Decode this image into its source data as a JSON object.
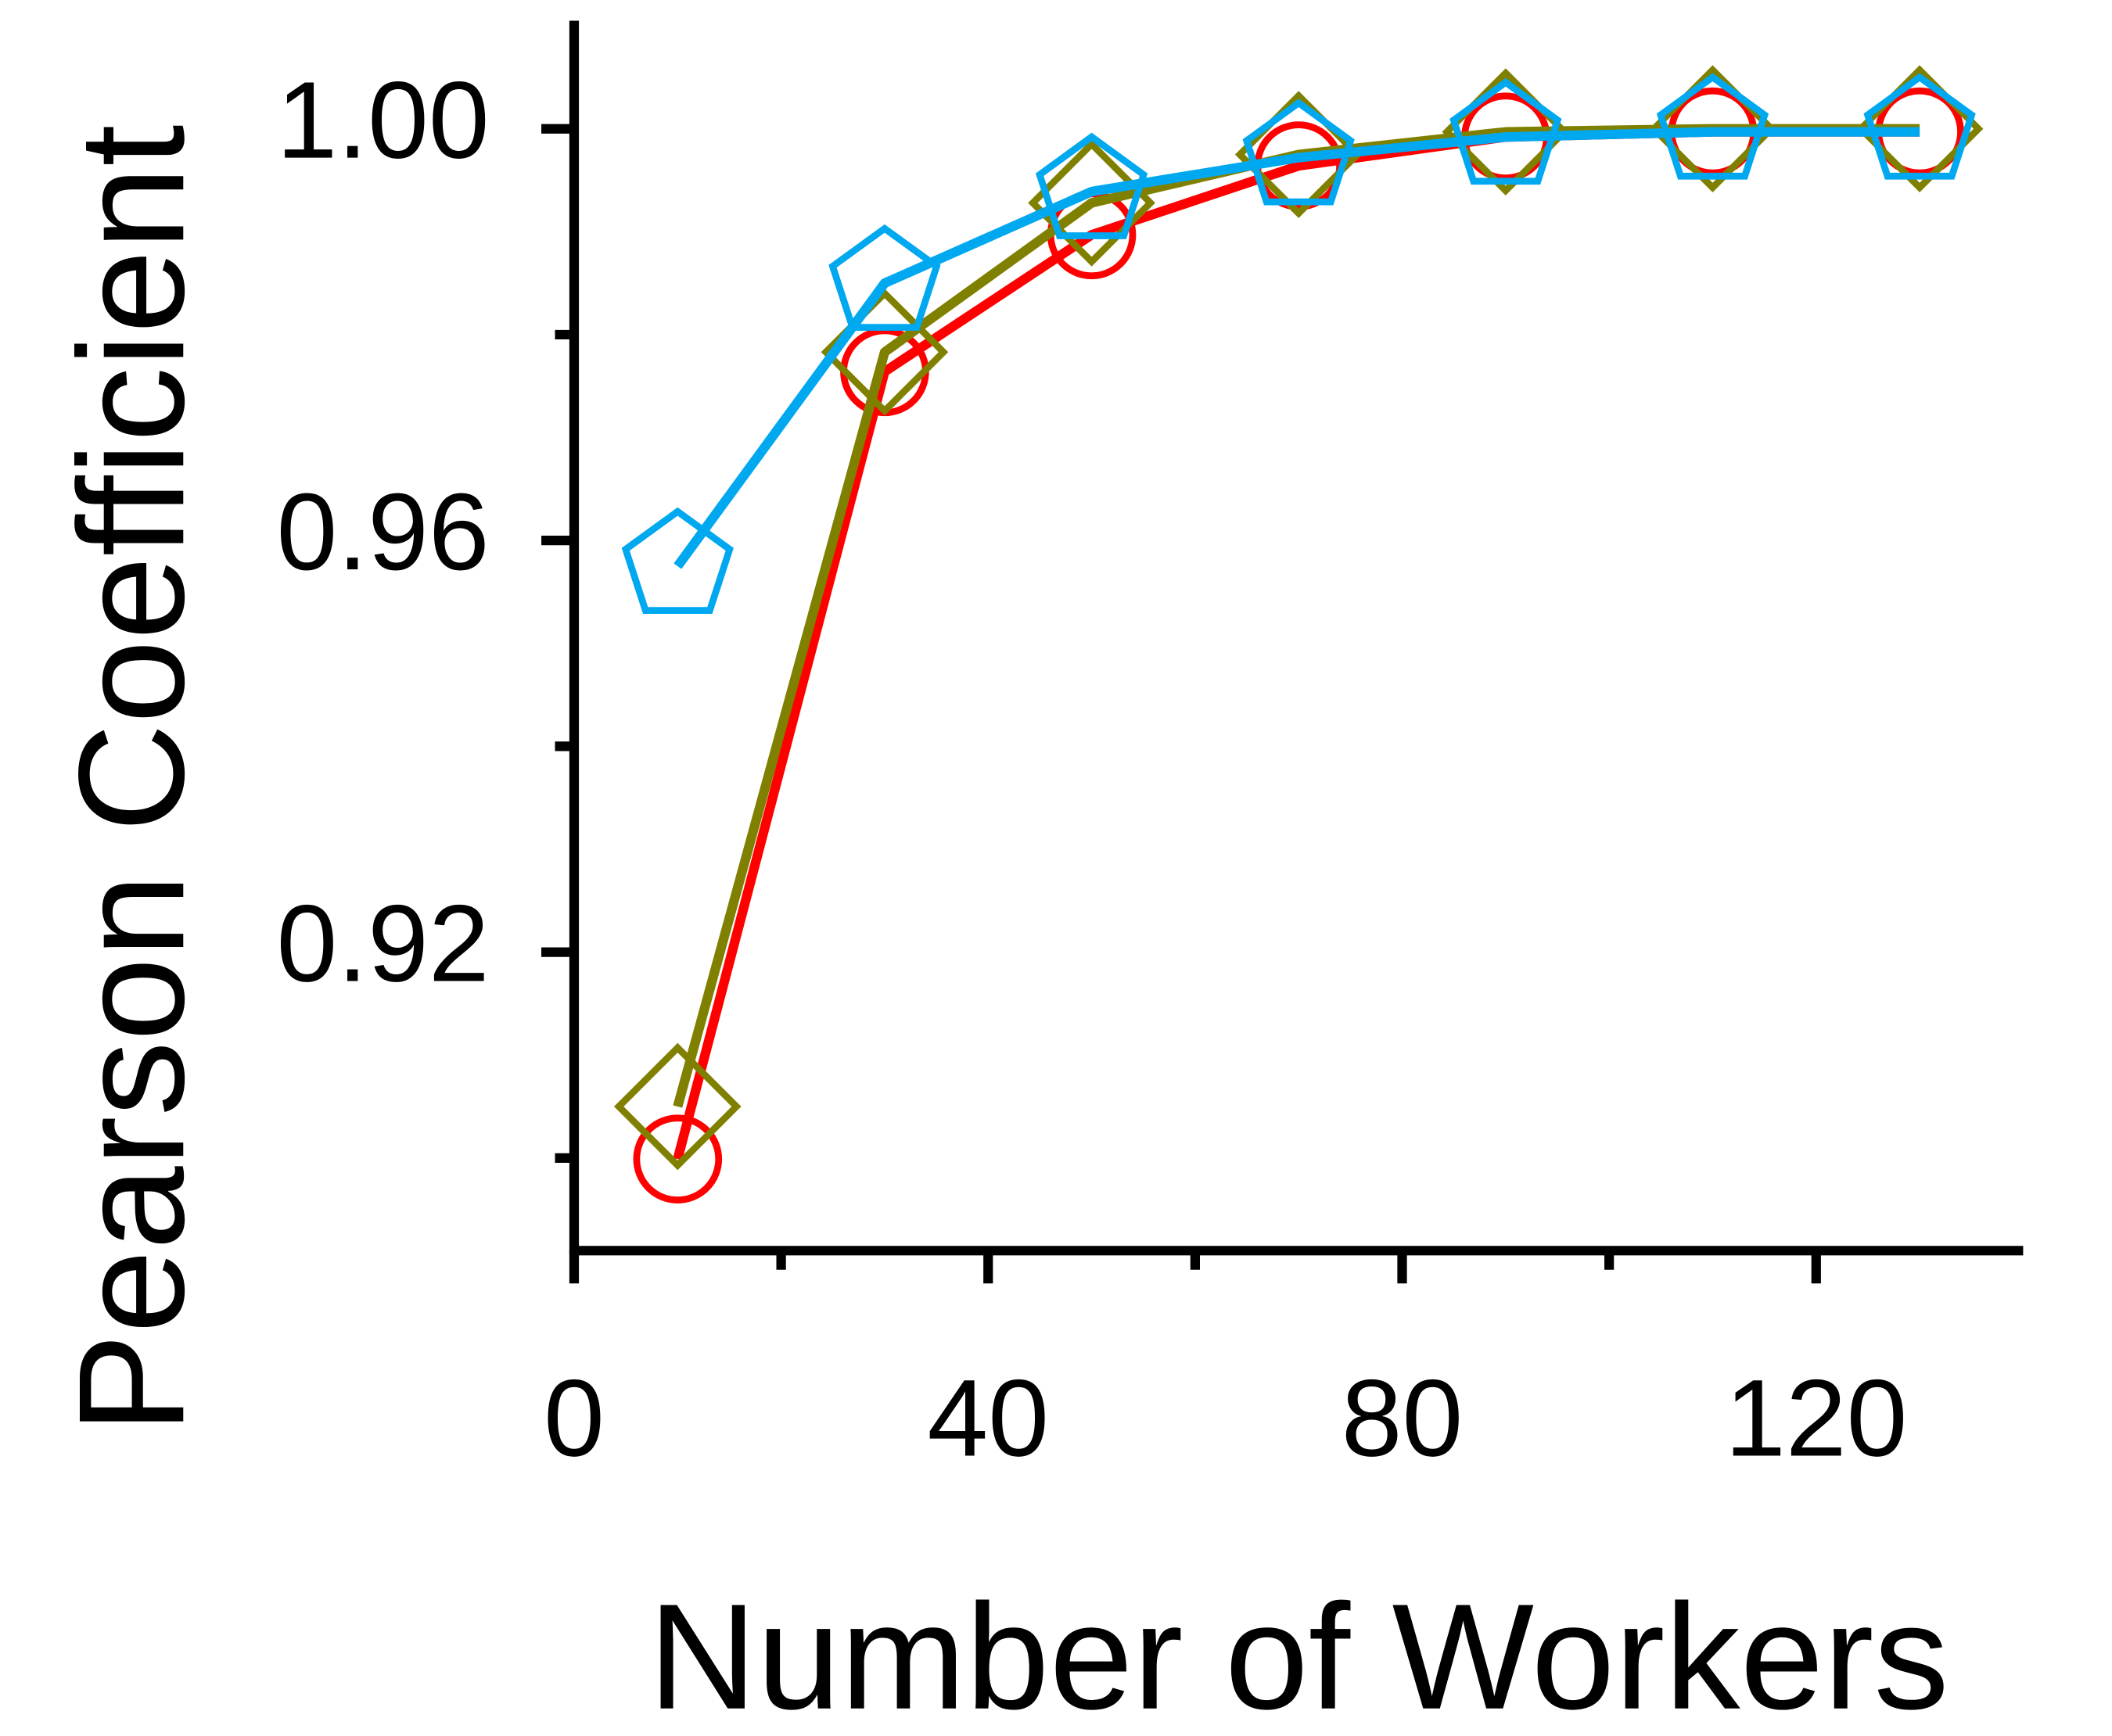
{
  "chart_data": {
    "type": "line",
    "x_label": "Number of Workers",
    "y_label": "Pearson Coefficient",
    "x": [
      10,
      30,
      50,
      70,
      90,
      110,
      130
    ],
    "series": [
      {
        "color": "#ff0000",
        "marker": "circle",
        "values": [
          0.8999,
          0.9764,
          0.9897,
          0.9964,
          0.9992,
          0.9997,
          0.9997
        ]
      },
      {
        "color": "#808000",
        "marker": "diamond",
        "values": [
          0.905,
          0.9783,
          0.9928,
          0.9975,
          0.9997,
          1.0,
          1.0
        ]
      },
      {
        "color": "#00a8f0",
        "marker": "pentagon",
        "values": [
          0.9575,
          0.985,
          0.9939,
          0.9972,
          0.9992,
          0.9997,
          0.9997
        ]
      }
    ],
    "xlim": [
      0,
      140
    ],
    "ylim": [
      0.891,
      1.0105
    ],
    "xticks": [
      0,
      40,
      80,
      120
    ],
    "xticks_minor": [
      20,
      60,
      100
    ],
    "yticks": [
      0.92,
      0.96,
      {
        "value": 1.0,
        "label": "1.00"
      }
    ],
    "yticks_minor": [
      0.9,
      0.94,
      0.98
    ],
    "grid": false
  }
}
